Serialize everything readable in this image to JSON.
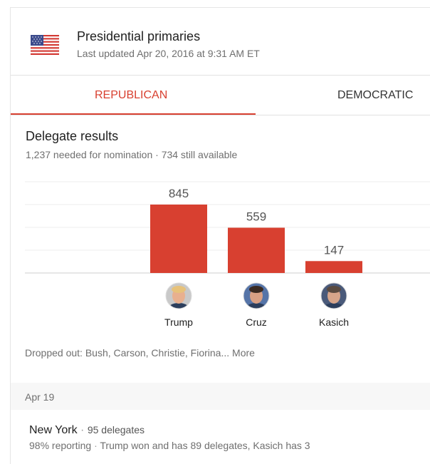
{
  "header": {
    "title": "Presidential primaries",
    "updated": "Last updated Apr 20, 2016 at 9:31 AM ET",
    "flag_icon": "us-flag-icon"
  },
  "tabs": [
    {
      "label": "REPUBLICAN",
      "active": true
    },
    {
      "label": "DEMOCRATIC",
      "active": false
    }
  ],
  "results": {
    "title": "Delegate results",
    "subtitle": "1,237 needed for nomination · 734 still available"
  },
  "chart_data": {
    "type": "bar",
    "title": "",
    "categories": [
      "Trump",
      "Cruz",
      "Kasich"
    ],
    "values": [
      845,
      559,
      147
    ],
    "ylim": [
      0,
      845
    ],
    "grid": true,
    "color": "#d84030"
  },
  "dropped": {
    "text": "Dropped out: Bush, Carson, Christie, Fiorina...",
    "more_label": "More"
  },
  "date_row": {
    "label": "Apr 19"
  },
  "state_result": {
    "state": "New York",
    "separator": "·",
    "delegates": "95 delegates",
    "reporting": "98% reporting",
    "summary": "Trump won and has 89 delegates, Kasich has 3"
  }
}
